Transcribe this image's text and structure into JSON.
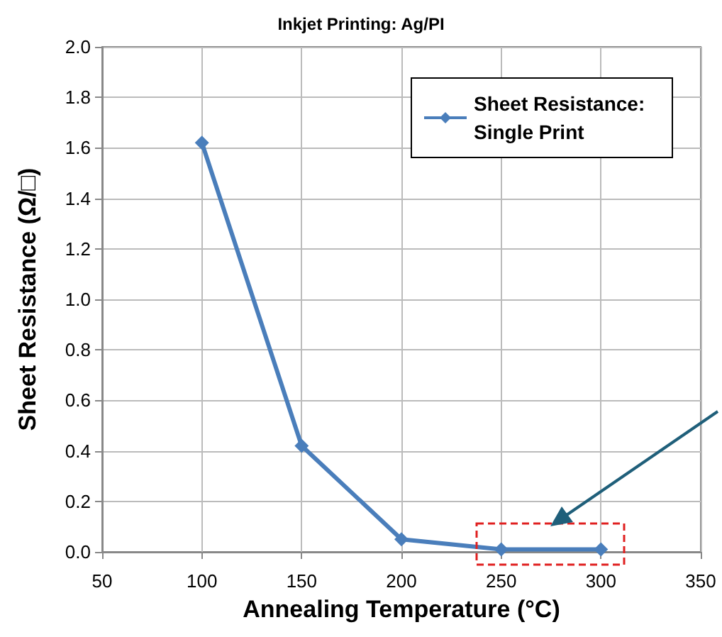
{
  "chart_data": {
    "type": "line",
    "title": "Inkjet Printing: Ag/PI",
    "xlabel": "Annealing Temperature (°C)",
    "ylabel": "Sheet Resistance (Ω/□)",
    "x": [
      100,
      150,
      200,
      250,
      300
    ],
    "series": [
      {
        "name": "Sheet Resistance: Single Print",
        "color": "#4a7ebb",
        "values": [
          1.62,
          0.42,
          0.05,
          0.01,
          0.01
        ]
      }
    ],
    "xlim": [
      50,
      350
    ],
    "xticks": [
      50,
      100,
      150,
      200,
      250,
      300,
      350
    ],
    "ylim": [
      0,
      2
    ],
    "yticks": [
      {
        "value": 0,
        "label": "0.0"
      },
      0.2,
      0.4,
      0.6,
      0.8,
      {
        "value": 1,
        "label": "1.0"
      },
      1.2,
      1.4,
      1.6,
      1.8,
      {
        "value": 2,
        "label": "2.0"
      }
    ],
    "grid": true,
    "legend": "top right",
    "marker": "diamond",
    "line_style": "solid"
  }
}
